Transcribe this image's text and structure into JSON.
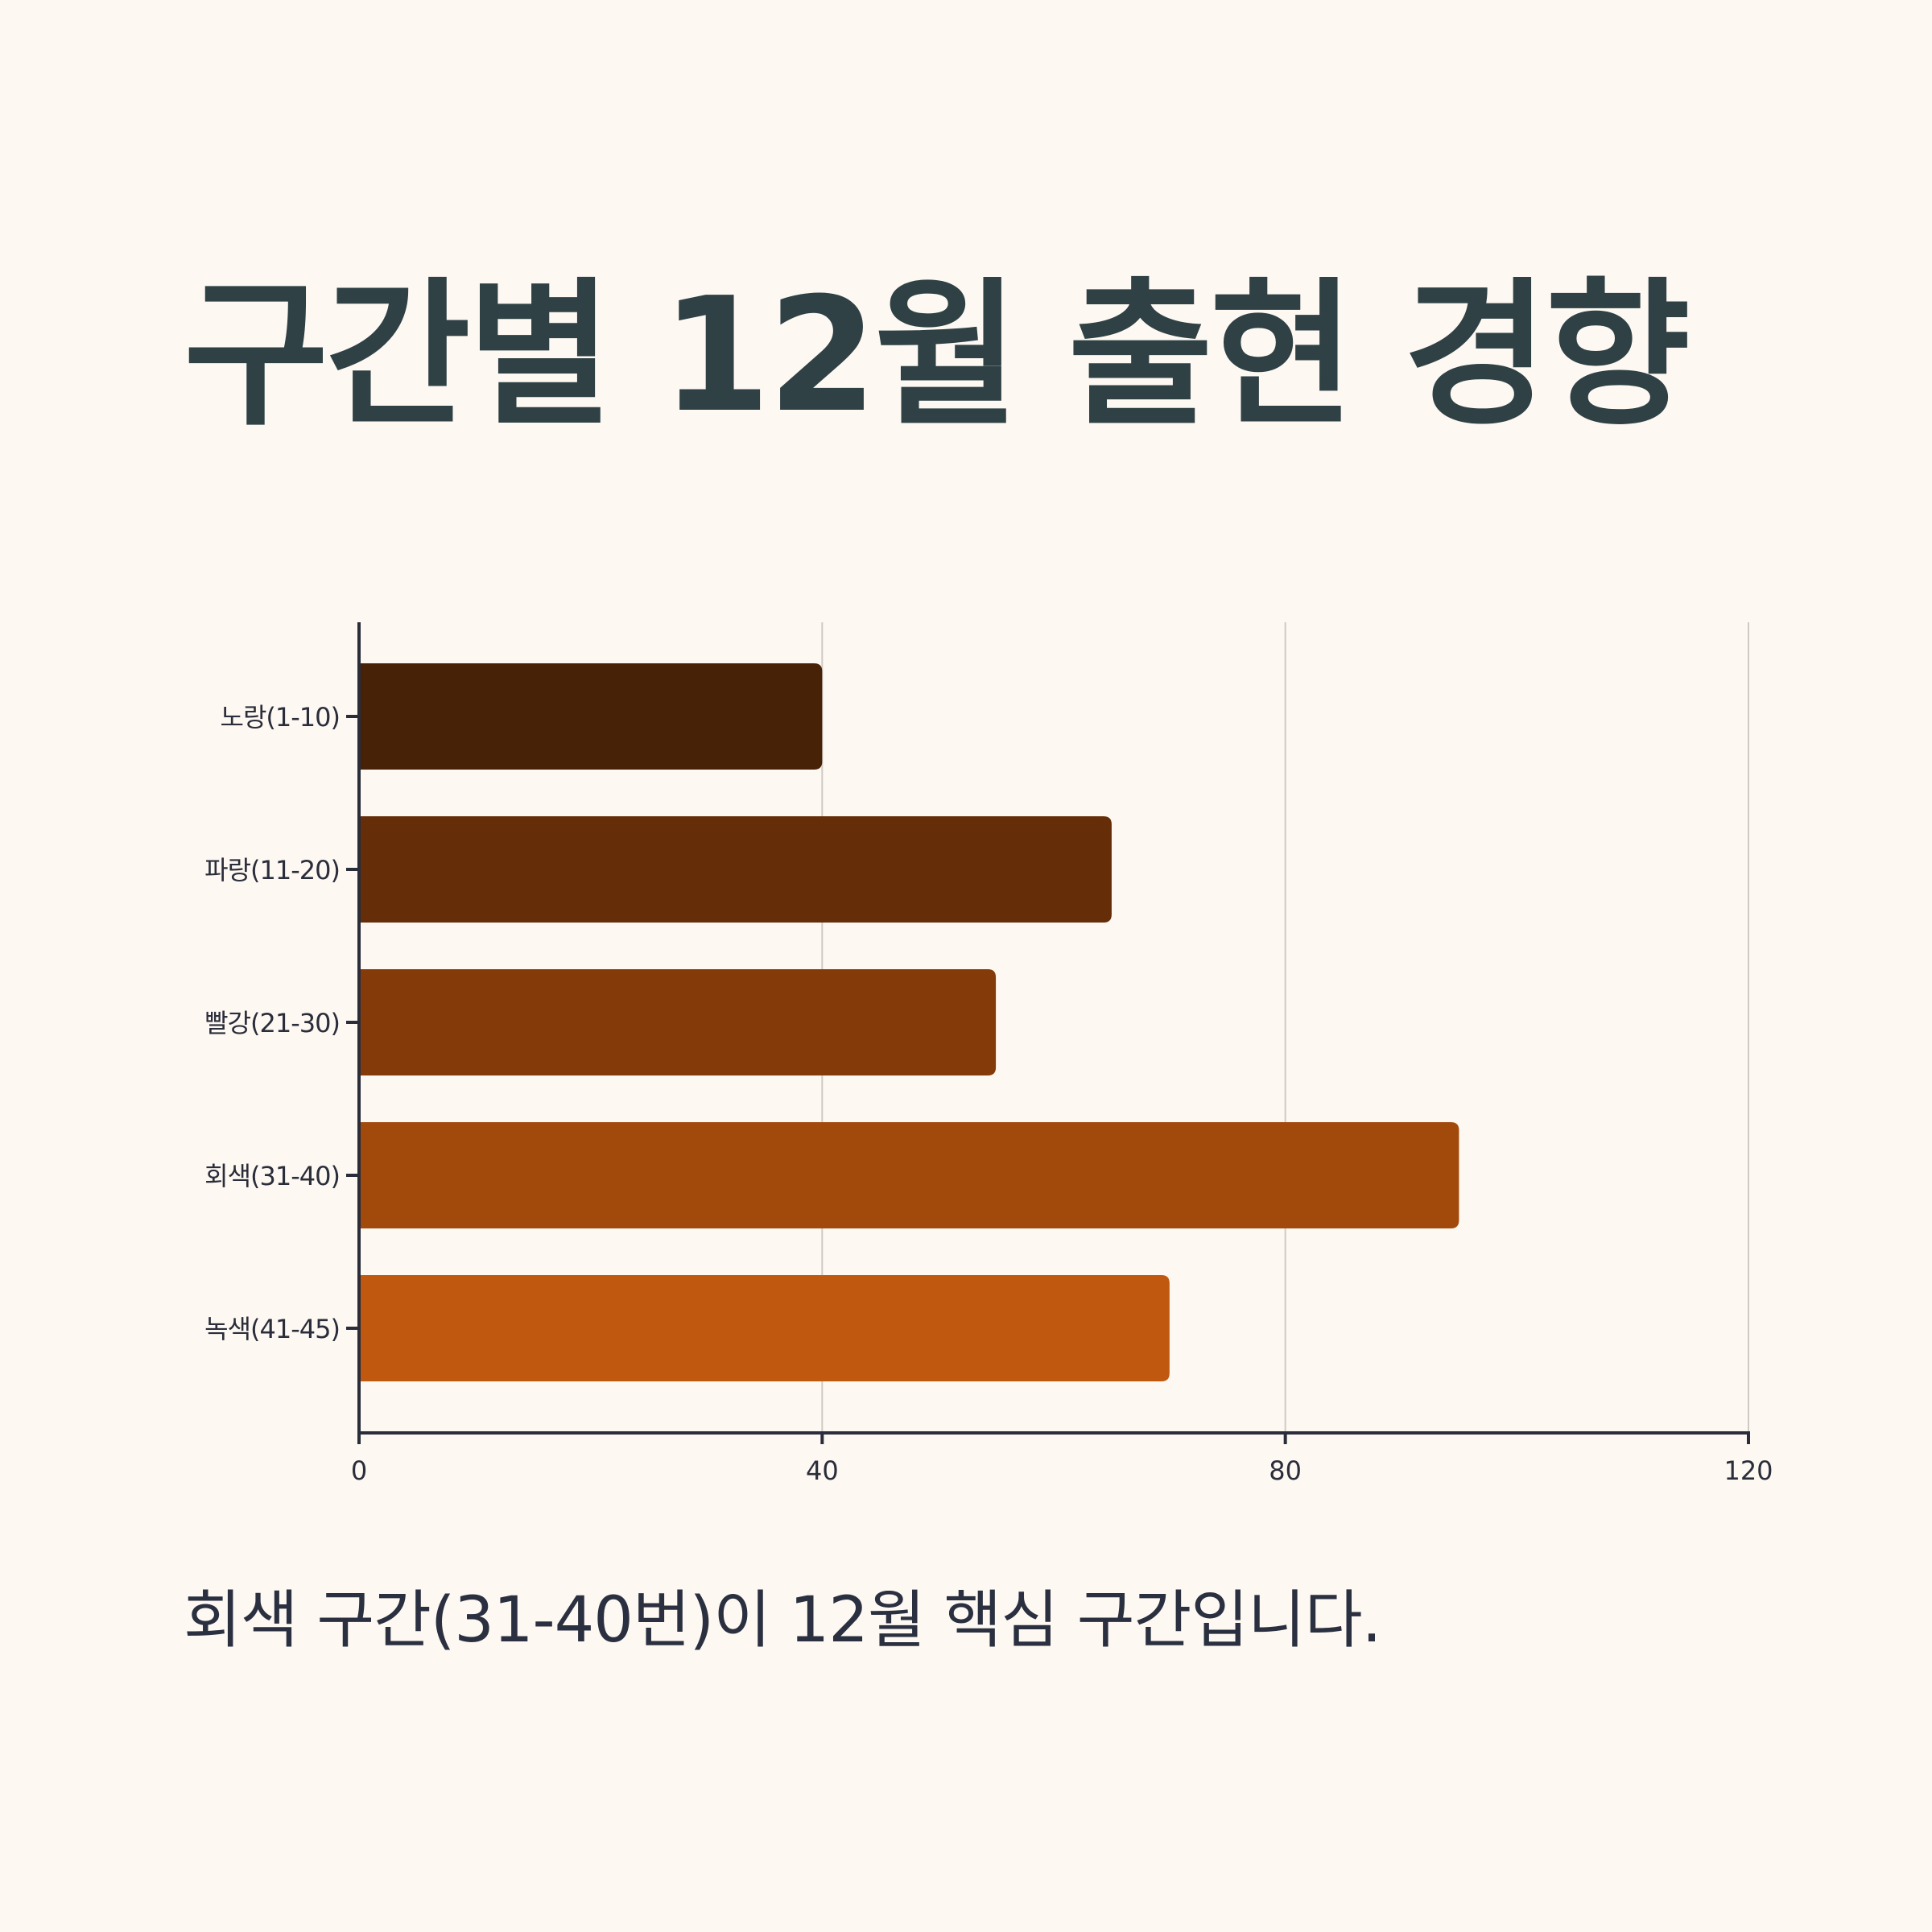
{
  "title": "구간별 12월 출현 경향",
  "caption": "회색 구간(31-40번)이 12월 핵심 구간입니다.",
  "colors": {
    "background": "#fef8f2",
    "axis": "#2a2d3a",
    "grid": "#cfcbc4",
    "title": "#2f4145"
  },
  "chart_data": {
    "type": "bar",
    "orientation": "horizontal",
    "categories": [
      "노랑(1-10)",
      "파랑(11-20)",
      "빨강(21-30)",
      "회색(31-40)",
      "녹색(41-45)"
    ],
    "values": [
      40,
      65,
      55,
      95,
      70
    ],
    "bar_colors": [
      "#472207",
      "#652d08",
      "#853b09",
      "#a24a0c",
      "#c0590f"
    ],
    "xlim": [
      0,
      120
    ],
    "x_ticks": [
      0,
      40,
      80,
      120
    ],
    "grid": true,
    "xlabel": "",
    "ylabel": ""
  }
}
